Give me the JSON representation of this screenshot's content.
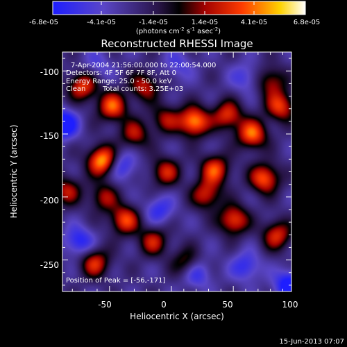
{
  "chart_data": {
    "type": "heatmap",
    "title": "Reconstructed RHESSI Image",
    "xlabel": "Heliocentric X (arcsec)",
    "ylabel": "Heliocentric Y (arcsec)",
    "xlim": [
      -88,
      97
    ],
    "ylim": [
      -275,
      -85
    ],
    "x_ticks": [
      -50,
      0,
      50,
      100
    ],
    "y_ticks": [
      -100,
      -150,
      -200,
      -250
    ],
    "colorbar": {
      "ticks": [
        "-6.8e-05",
        "-4.1e-05",
        "-1.4e-05",
        "1.4e-05",
        "4.1e-05",
        "6.8e-05"
      ],
      "min": -6.8e-05,
      "max": 6.8e-05,
      "unit_prefix": "(photons cm",
      "unit_sup1": "-2",
      "unit_mid": " s",
      "unit_sup2": "-1",
      "unit_mid2": " asec",
      "unit_sup3": "-2",
      "unit_suffix": ")"
    },
    "annotations": {
      "time_range": "7-Apr-2004 21:56:00.000 to 22:00:54.000",
      "detectors": "Detectors: 4F 5F 6F 7F 8F, Att 0",
      "energy": "Energy Range: 25.0 - 50.0 keV",
      "method": "Clean",
      "counts": "Total counts: 3.25E+03",
      "peak": "Position of Peak = [-56,-171]"
    },
    "peak_position": [
      -56,
      -171
    ],
    "sources": [
      {
        "x": -56,
        "y": -171,
        "v": 6.8e-05
      },
      {
        "x": -72,
        "y": -112,
        "v": 4.6e-05
      },
      {
        "x": -48,
        "y": -128,
        "v": 5.2e-05
      },
      {
        "x": -22,
        "y": -112,
        "v": 3.6e-05
      },
      {
        "x": 18,
        "y": -140,
        "v": 6.5e-05
      },
      {
        "x": 45,
        "y": -135,
        "v": 4.4e-05
      },
      {
        "x": 65,
        "y": -150,
        "v": 5.6e-05
      },
      {
        "x": 88,
        "y": -128,
        "v": 4.6e-05
      },
      {
        "x": 75,
        "y": -185,
        "v": 5.4e-05
      },
      {
        "x": 85,
        "y": -230,
        "v": 4.2e-05
      },
      {
        "x": 35,
        "y": -178,
        "v": 4.8e-05
      },
      {
        "x": 28,
        "y": -198,
        "v": 4e-05
      },
      {
        "x": -5,
        "y": -180,
        "v": 3.8e-05
      },
      {
        "x": -38,
        "y": -218,
        "v": 4.8e-05
      },
      {
        "x": -55,
        "y": -200,
        "v": 3e-05
      },
      {
        "x": -85,
        "y": -195,
        "v": 3.4e-05
      },
      {
        "x": -62,
        "y": -252,
        "v": 4.2e-05
      },
      {
        "x": -15,
        "y": -235,
        "v": 3.6e-05
      },
      {
        "x": 50,
        "y": -218,
        "v": 5e-05
      },
      {
        "x": 12,
        "y": -252,
        "v": 3e-05
      },
      {
        "x": -30,
        "y": -150,
        "v": 3.4e-05
      },
      {
        "x": -5,
        "y": -138,
        "v": 3e-05
      },
      {
        "x": 80,
        "y": -108,
        "v": 3.2e-05
      },
      {
        "x": -40,
        "y": -175,
        "v": -4.5e-05
      },
      {
        "x": -10,
        "y": -210,
        "v": -4.2e-05
      },
      {
        "x": -75,
        "y": -235,
        "v": -5e-05
      },
      {
        "x": 20,
        "y": -260,
        "v": -4.6e-05
      },
      {
        "x": 60,
        "y": -255,
        "v": -4.4e-05
      },
      {
        "x": -88,
        "y": -142,
        "v": -6.8e-05
      },
      {
        "x": 95,
        "y": -270,
        "v": -6.5e-05
      },
      {
        "x": 5,
        "y": -95,
        "v": -3.2e-05
      },
      {
        "x": 60,
        "y": -105,
        "v": -3.6e-05
      },
      {
        "x": -60,
        "y": -95,
        "v": -3e-05
      }
    ]
  },
  "footer": {
    "date": "15-Jun-2013 07:07"
  }
}
